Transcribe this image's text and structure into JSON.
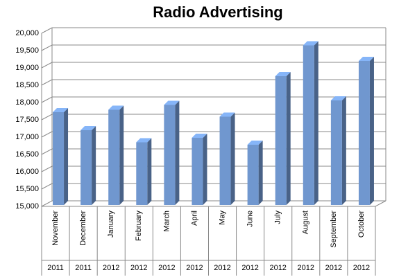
{
  "chart_data": {
    "type": "bar3d",
    "title": "Radio Advertising",
    "categories": [
      "November",
      "December",
      "January",
      "February",
      "March",
      "April",
      "May",
      "June",
      "July",
      "August",
      "September",
      "October"
    ],
    "category_years": [
      "2011",
      "2011",
      "2012",
      "2012",
      "2012",
      "2012",
      "2012",
      "2012",
      "2012",
      "2012",
      "2012",
      "2012"
    ],
    "values": [
      17720,
      17200,
      17790,
      16850,
      17930,
      16980,
      17590,
      16780,
      18760,
      19650,
      18060,
      19200
    ],
    "color": "#7097cf",
    "ylim": [
      15000,
      20000
    ],
    "yticks": [
      {
        "value": 15000,
        "label": "15,000"
      },
      {
        "value": 15500,
        "label": "15,500"
      },
      {
        "value": 16000,
        "label": "16,000"
      },
      {
        "value": 16500,
        "label": "16,500"
      },
      {
        "value": 17000,
        "label": "17,000"
      },
      {
        "value": 17500,
        "label": "17,500"
      },
      {
        "value": 18000,
        "label": "18,000"
      },
      {
        "value": 18500,
        "label": "18,500"
      },
      {
        "value": 19000,
        "label": "19,000"
      },
      {
        "value": 19500,
        "label": "19,500"
      },
      {
        "value": 20000,
        "label": "20,000"
      }
    ],
    "grid": true
  }
}
